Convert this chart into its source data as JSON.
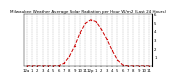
{
  "title": "Milwaukee Weather Average Solar Radiation per Hour W/m2 (Last 24 Hours)",
  "hours": [
    0,
    1,
    2,
    3,
    4,
    5,
    6,
    7,
    8,
    9,
    10,
    11,
    12,
    13,
    14,
    15,
    16,
    17,
    18,
    19,
    20,
    21,
    22,
    23
  ],
  "values": [
    0,
    0,
    0,
    0,
    0,
    0,
    2,
    30,
    110,
    230,
    380,
    490,
    530,
    510,
    420,
    310,
    180,
    70,
    10,
    0,
    0,
    0,
    0,
    0
  ],
  "line_color": "#cc0000",
  "background_color": "#ffffff",
  "grid_color": "#999999",
  "ylim": [
    0,
    600
  ],
  "xlim": [
    -0.5,
    23.5
  ],
  "ytick_values": [
    0,
    100,
    200,
    300,
    400,
    500,
    600
  ],
  "ytick_labels": [
    "0",
    "1",
    "2",
    "3",
    "4",
    "5",
    "6"
  ],
  "xtick_positions": [
    0,
    1,
    2,
    3,
    4,
    5,
    6,
    7,
    8,
    9,
    10,
    11,
    12,
    13,
    14,
    15,
    16,
    17,
    18,
    19,
    20,
    21,
    22,
    23
  ],
  "xtick_labels": [
    "12a",
    "1",
    "2",
    "3",
    "4",
    "5",
    "6",
    "7",
    "8",
    "9",
    "10",
    "11",
    "12p",
    "1",
    "2",
    "3",
    "4",
    "5",
    "6",
    "7",
    "8",
    "9",
    "10",
    "11"
  ],
  "title_fontsize": 3.0,
  "tick_fontsize": 2.8,
  "linewidth": 0.7,
  "markersize": 1.2
}
